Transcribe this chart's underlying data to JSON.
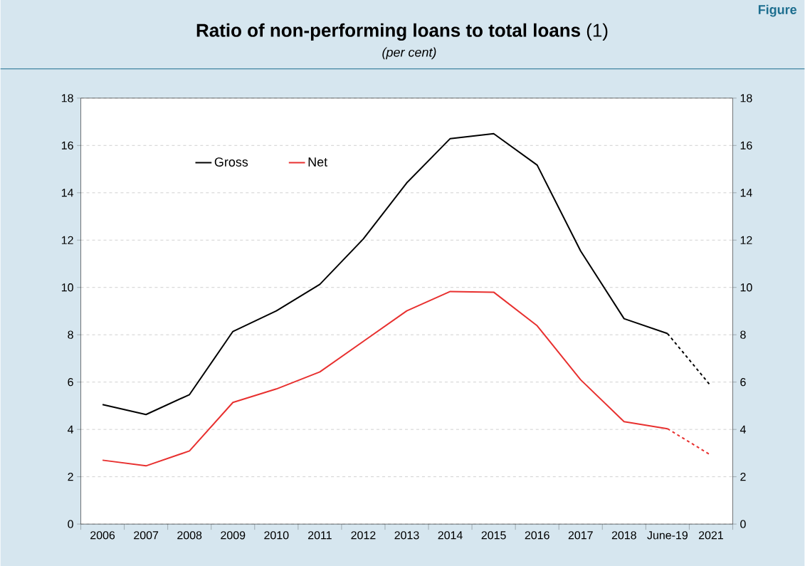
{
  "chart_data": {
    "type": "line",
    "title": "**Ratio of non-performing loans to total loans** (1)",
    "subtitle": "(per cent)",
    "categories": [
      "2006",
      "2007",
      "2008",
      "2009",
      "2010",
      "2011",
      "2012",
      "2013",
      "2014",
      "2015",
      "2016",
      "2017",
      "2018",
      "June-19",
      "2021"
    ],
    "series": [
      {
        "name": "Gross",
        "color": "#000000",
        "line_style": "solid",
        "values": [
          5.05,
          4.63,
          5.47,
          8.14,
          9.01,
          10.13,
          12.05,
          14.42,
          16.29,
          16.5,
          15.17,
          11.54,
          8.68,
          8.05,
          null
        ]
      },
      {
        "name": "Net",
        "color": "#e8302f",
        "line_style": "solid",
        "values": [
          2.7,
          2.46,
          3.09,
          5.14,
          5.71,
          6.43,
          7.72,
          9.01,
          9.83,
          9.8,
          8.38,
          6.1,
          4.33,
          4.03,
          null
        ]
      },
      {
        "color": "#000000",
        "line_style": "dashed",
        "values": [
          null,
          null,
          null,
          null,
          null,
          null,
          null,
          null,
          null,
          null,
          null,
          null,
          null,
          8.05,
          5.83
        ]
      },
      {
        "color": "#e8302f",
        "line_style": "dashed",
        "values": [
          null,
          null,
          null,
          null,
          null,
          null,
          null,
          null,
          null,
          null,
          null,
          null,
          null,
          4.03,
          2.91
        ]
      }
    ],
    "ylim": [
      0,
      18
    ],
    "yticks": [
      0,
      2,
      4,
      6,
      8,
      10,
      12,
      14,
      16,
      18
    ],
    "y2lim": [
      0,
      18
    ],
    "y2ticks": [
      0,
      2,
      4,
      6,
      8,
      10,
      12,
      14,
      16,
      18
    ],
    "grid": "y",
    "legend": "top left",
    "marker": "none",
    "annotations": [
      "Figure"
    ]
  }
}
